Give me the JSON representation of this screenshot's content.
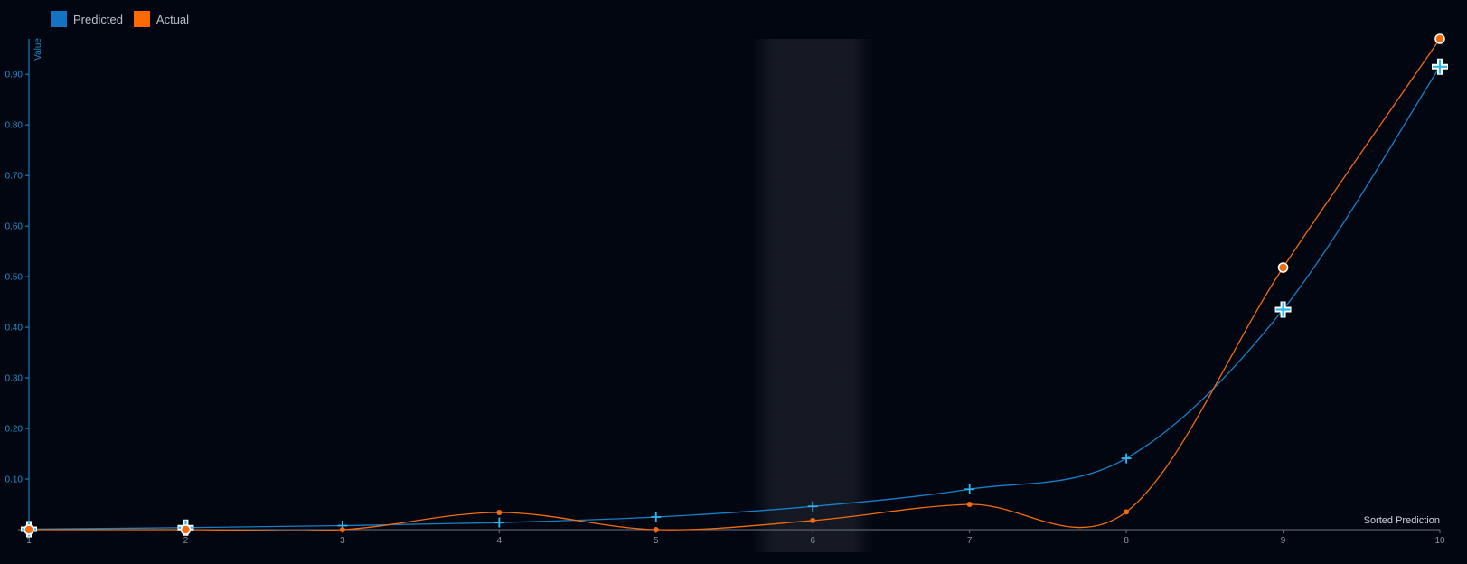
{
  "legend": {
    "items": [
      {
        "label": "Predicted",
        "color": "#1472c4"
      },
      {
        "label": "Actual",
        "color": "#ff6a00"
      }
    ]
  },
  "chart_data": {
    "type": "line",
    "x": [
      1,
      2,
      3,
      4,
      5,
      6,
      7,
      8,
      9,
      10
    ],
    "series": [
      {
        "name": "Predicted",
        "color": "#1680c8",
        "marker": "cross",
        "values": [
          0.001,
          0.004,
          0.008,
          0.014,
          0.025,
          0.046,
          0.08,
          0.141,
          0.435,
          0.915
        ]
      },
      {
        "name": "Actual",
        "color": "#f36b10",
        "marker": "circle",
        "values": [
          0.0,
          0.0,
          0.0,
          0.034,
          0.0,
          0.018,
          0.05,
          0.035,
          0.518,
          0.97
        ]
      }
    ],
    "xlabel": "Sorted Prediction",
    "ylabel": "Value",
    "xticks": [
      "1",
      "2",
      "3",
      "4",
      "5",
      "6",
      "7",
      "8",
      "9",
      "10"
    ],
    "yticks": [
      "0.10",
      "0.20",
      "0.30",
      "0.40",
      "0.50",
      "0.60",
      "0.70",
      "0.80",
      "0.90"
    ],
    "xlim": [
      1,
      10
    ],
    "ylim": [
      0,
      0.97
    ],
    "highlight_x": 6,
    "highlighted_points": [
      1,
      2,
      9,
      10
    ],
    "grid": false,
    "legend_position": "top-left"
  }
}
